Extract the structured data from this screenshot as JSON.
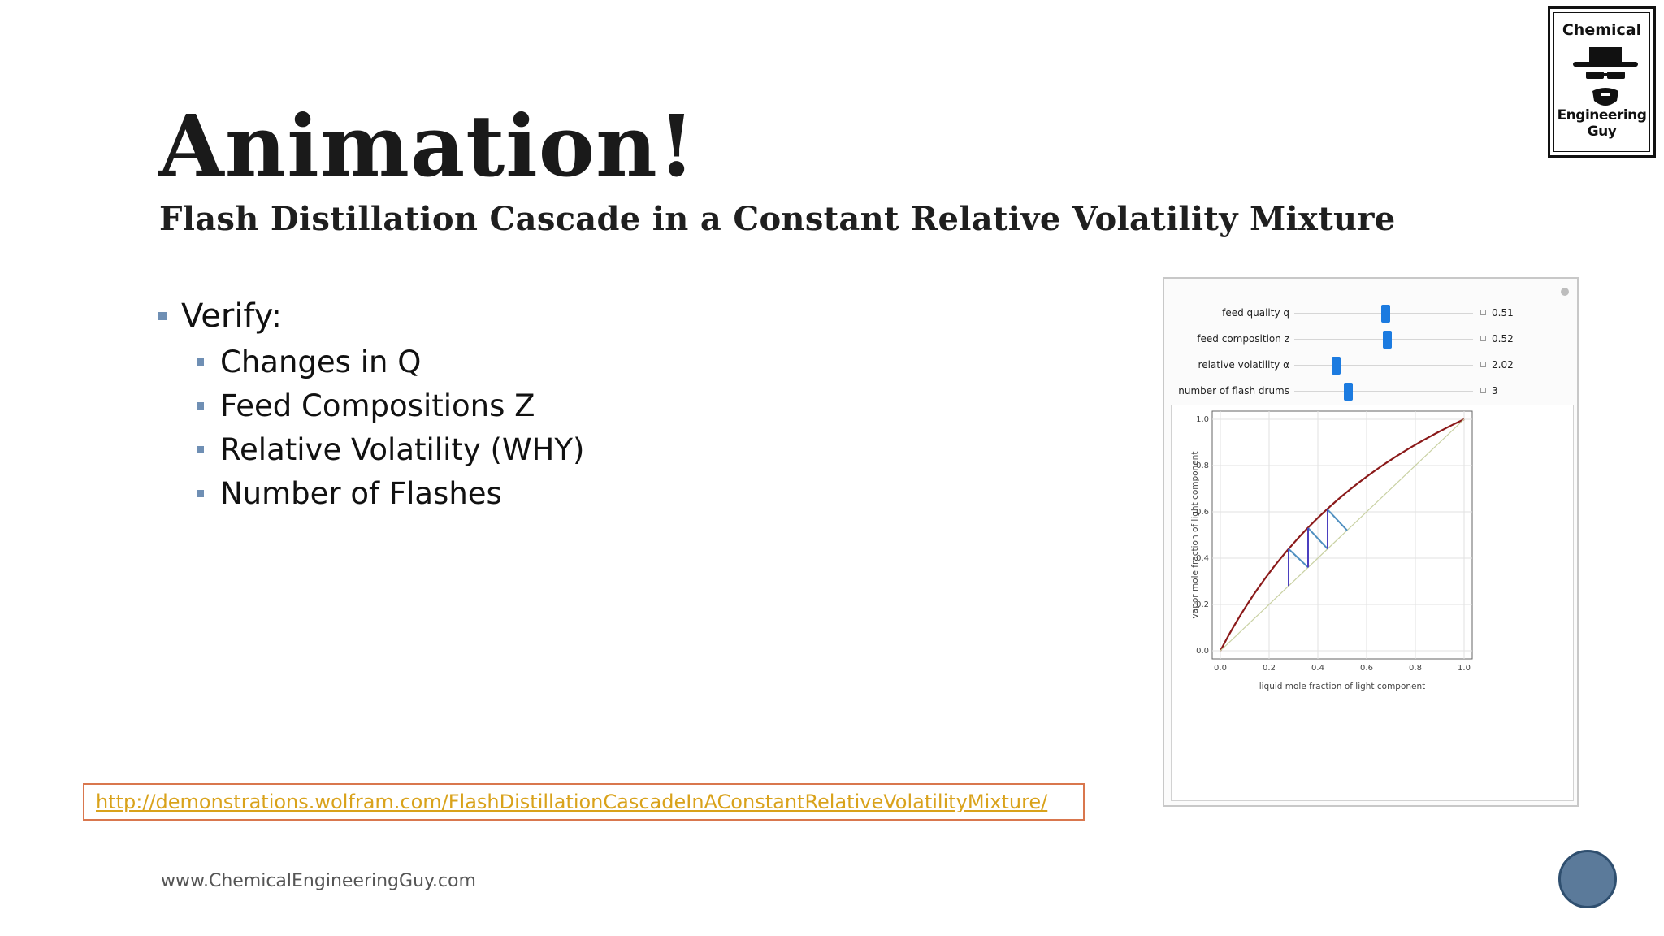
{
  "slide": {
    "title": "Animation!",
    "subtitle": "Flash Distillation Cascade in a Constant Relative Volatility Mixture",
    "bullet_main": "Verify:",
    "sub_bullets": [
      "Changes in Q",
      "Feed Compositions Z",
      "Relative Volatility (WHY)",
      "Number of Flashes"
    ],
    "link": "http://demonstrations.wolfram.com/FlashDistillationCascadeInAConstantRelativeVolatilityMixture/",
    "footer": "www.ChemicalEngineeringGuy.com"
  },
  "logo": {
    "line1": "Chemical",
    "line2": "Engineering Guy"
  },
  "demo": {
    "controls": [
      {
        "label": "feed quality q",
        "value": "0.51",
        "fraction": 0.51
      },
      {
        "label": "feed composition z",
        "value": "0.52",
        "fraction": 0.52
      },
      {
        "label": "relative volatility α",
        "value": "2.02",
        "fraction": 0.23
      },
      {
        "label": "number of flash drums",
        "value": "3",
        "fraction": 0.3
      }
    ]
  },
  "chart_data": {
    "type": "line",
    "xlabel": "liquid mole fraction of light component",
    "ylabel": "vapor mole fraction of light component",
    "xlim": [
      0,
      1
    ],
    "ylim": [
      0,
      1
    ],
    "xticks": [
      "0.0",
      "0.2",
      "0.4",
      "0.6",
      "0.8",
      "1.0"
    ],
    "yticks": [
      "0.0",
      "0.2",
      "0.4",
      "0.6",
      "0.8",
      "1.0"
    ],
    "grid": true,
    "alpha": 2.02,
    "series": [
      {
        "role": "equilibrium curve",
        "color": "#8b1a1a",
        "x": [
          0,
          0.1,
          0.2,
          0.3,
          0.4,
          0.5,
          0.6,
          0.7,
          0.8,
          0.9,
          1.0
        ],
        "y": [
          0,
          0.183,
          0.336,
          0.464,
          0.574,
          0.669,
          0.752,
          0.825,
          0.89,
          0.948,
          1.0
        ]
      },
      {
        "role": "diagonal y=x",
        "color": "#c9d1a3",
        "x": [
          0,
          1
        ],
        "y": [
          0,
          1
        ]
      },
      {
        "role": "operating lines",
        "color": "#4f8fc0",
        "segments": [
          [
            0.52,
            0.52,
            0.44,
            0.61
          ],
          [
            0.44,
            0.44,
            0.36,
            0.53
          ],
          [
            0.36,
            0.36,
            0.28,
            0.44
          ]
        ]
      },
      {
        "role": "vertical steps",
        "color": "#4b3fbf",
        "segments": [
          [
            0.44,
            0.44,
            0.44,
            0.61
          ],
          [
            0.36,
            0.36,
            0.36,
            0.53
          ],
          [
            0.28,
            0.28,
            0.28,
            0.44
          ]
        ]
      }
    ]
  }
}
